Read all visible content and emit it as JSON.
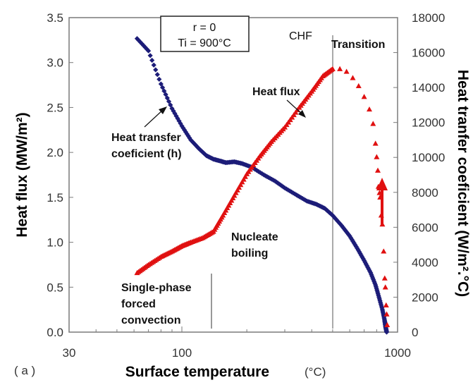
{
  "chart_data": {
    "type": "scatter",
    "x_scale": "log",
    "xlim": [
      30,
      1000
    ],
    "xticks": [
      "30",
      "100",
      "1000"
    ],
    "xtick_values": [
      30,
      100,
      1000
    ],
    "xlabel": "Surface temperature",
    "xlabel_unit": "(°C)",
    "ylim": [
      0,
      3.5
    ],
    "ylabel": "Heat flux (MW/m²)",
    "yticks": [
      "0.0",
      "0.5",
      "1.0",
      "1.5",
      "2.0",
      "2.5",
      "3.0",
      "3.5"
    ],
    "ytick_values": [
      0,
      0.5,
      1.0,
      1.5,
      2.0,
      2.5,
      3.0,
      3.5
    ],
    "y2lim": [
      0,
      18000
    ],
    "y2label": "Heat tranfer coeficient (W/m².°C)",
    "y2ticks": [
      "0",
      "2000",
      "4000",
      "6000",
      "8000",
      "10000",
      "12000",
      "14000",
      "16000",
      "18000"
    ],
    "y2tick_values": [
      0,
      2000,
      4000,
      6000,
      8000,
      10000,
      12000,
      14000,
      16000,
      18000
    ],
    "series": [
      {
        "name": "Heat flux",
        "axis": "left",
        "color": "#e01010",
        "marker": "triangle",
        "points": [
          [
            62,
            0.66
          ],
          [
            70,
            0.75
          ],
          [
            80,
            0.84
          ],
          [
            90,
            0.9
          ],
          [
            100,
            0.96
          ],
          [
            110,
            1.0
          ],
          [
            125,
            1.05
          ],
          [
            140,
            1.12
          ],
          [
            155,
            1.3
          ],
          [
            175,
            1.52
          ],
          [
            200,
            1.76
          ],
          [
            230,
            1.96
          ],
          [
            260,
            2.12
          ],
          [
            300,
            2.28
          ],
          [
            350,
            2.5
          ],
          [
            400,
            2.68
          ],
          [
            450,
            2.85
          ],
          [
            500,
            2.93
          ],
          [
            540,
            2.93
          ],
          [
            580,
            2.9
          ],
          [
            620,
            2.83
          ],
          [
            660,
            2.74
          ],
          [
            700,
            2.62
          ],
          [
            740,
            2.48
          ],
          [
            770,
            2.32
          ],
          [
            790,
            2.1
          ],
          [
            800,
            1.95
          ],
          [
            810,
            1.8
          ],
          [
            815,
            1.62
          ],
          [
            825,
            1.55
          ],
          [
            830,
            1.5
          ],
          [
            840,
            1.3
          ],
          [
            850,
            1.2
          ],
          [
            862,
            0.9
          ],
          [
            872,
            0.6
          ],
          [
            878,
            0.5
          ],
          [
            885,
            0.3
          ],
          [
            890,
            0.2
          ],
          [
            895,
            0.08
          ]
        ]
      },
      {
        "name": "Heat transfer coeficient (h)",
        "axis": "right",
        "color": "#1c1c78",
        "marker": "diamond",
        "points": [
          [
            62,
            16800
          ],
          [
            70,
            16100
          ],
          [
            80,
            14200
          ],
          [
            90,
            12800
          ],
          [
            100,
            11800
          ],
          [
            110,
            11000
          ],
          [
            120,
            10500
          ],
          [
            130,
            10100
          ],
          [
            140,
            9900
          ],
          [
            150,
            9800
          ],
          [
            160,
            9700
          ],
          [
            175,
            9750
          ],
          [
            190,
            9650
          ],
          [
            210,
            9450
          ],
          [
            240,
            9000
          ],
          [
            270,
            8650
          ],
          [
            300,
            8250
          ],
          [
            340,
            7850
          ],
          [
            380,
            7500
          ],
          [
            420,
            7320
          ],
          [
            460,
            7080
          ],
          [
            500,
            6680
          ],
          [
            550,
            6100
          ],
          [
            600,
            5500
          ],
          [
            650,
            4800
          ],
          [
            700,
            4100
          ],
          [
            750,
            3400
          ],
          [
            790,
            2700
          ],
          [
            820,
            2000
          ],
          [
            850,
            1300
          ],
          [
            870,
            700
          ],
          [
            880,
            300
          ],
          [
            890,
            0
          ]
        ]
      }
    ],
    "annotations": {
      "condition_r": "r = 0",
      "condition_ti": "Ti = 900°C",
      "chf": "CHF",
      "transition": "Transition",
      "heat_flux": "Heat flux",
      "htc_line1": "Heat transfer",
      "htc_line2": "coeficient (h)",
      "nucleate_line1": "Nucleate",
      "nucleate_line2": "boiling",
      "single_line1": "Single-phase",
      "single_line2": "forced",
      "single_line3": "convection",
      "panel_label": "( a )"
    }
  }
}
